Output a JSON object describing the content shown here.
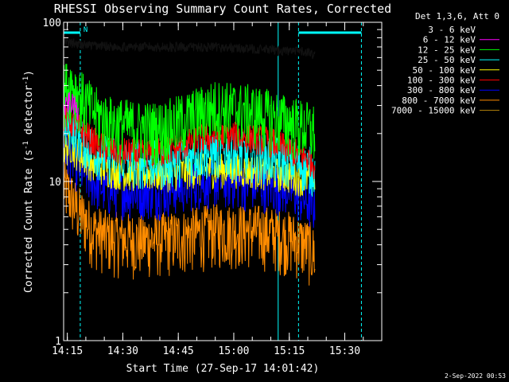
{
  "chart_data": {
    "type": "line",
    "title": "RHESSI Observing Summary Count Rates, Corrected",
    "xlabel": "Start Time (27-Sep-17 14:01:42)",
    "ylabel": "Corrected Count Rate",
    "ylabel_unit_a": "(s",
    "ylabel_unit_sup1": "-1",
    "ylabel_unit_b": " detector",
    "ylabel_unit_sup2": "-1",
    "ylabel_unit_c": ")",
    "y_scale": "log",
    "ylim": [
      1,
      100
    ],
    "xlim_minutes": [
      14.0,
      100.0
    ],
    "x_ticks": [
      {
        "label": "14:15",
        "minute": 15
      },
      {
        "label": "14:30",
        "minute": 30
      },
      {
        "label": "14:45",
        "minute": 45
      },
      {
        "label": "15:00",
        "minute": 60
      },
      {
        "label": "15:15",
        "minute": 75
      },
      {
        "label": "15:30",
        "minute": 90
      }
    ],
    "y_ticks": [
      {
        "label": "1",
        "value": 1
      },
      {
        "label": "10",
        "value": 10
      },
      {
        "label": "100",
        "value": 100
      }
    ],
    "legend_header": "Det 1,3,6, Att 0",
    "legend_position": "right",
    "flag_label": "N",
    "timestamp": "2-Sep-2022 00:53",
    "cyan_dashed_lines_minutes": [
      18.5,
      77.5,
      94.5
    ],
    "cyan_solid_lines_minutes": [
      14.0,
      72.0
    ],
    "series": [
      {
        "name": "3 - 6 keV",
        "color": "#000000",
        "start": 14.0,
        "end": 82.0,
        "values": [
          [
            14,
            75
          ],
          [
            20,
            72
          ],
          [
            30,
            70
          ],
          [
            40,
            70
          ],
          [
            50,
            70
          ],
          [
            60,
            69
          ],
          [
            70,
            67
          ],
          [
            75,
            66
          ],
          [
            80,
            65
          ],
          [
            82,
            62
          ]
        ]
      },
      {
        "name": "6 - 12 keV",
        "color": "#ff00ff",
        "start": 14.0,
        "end": 18.0,
        "values": [
          [
            14,
            28
          ],
          [
            15.5,
            32
          ],
          [
            17,
            30
          ],
          [
            18,
            27
          ]
        ]
      },
      {
        "name": "12 - 25 keV",
        "color": "#00ff00",
        "start": 14.0,
        "end": 82.0,
        "values": [
          [
            14,
            38
          ],
          [
            16,
            42
          ],
          [
            18,
            36
          ],
          [
            22,
            28
          ],
          [
            26,
            24
          ],
          [
            30,
            23
          ],
          [
            35,
            22
          ],
          [
            40,
            22
          ],
          [
            45,
            24
          ],
          [
            50,
            27
          ],
          [
            55,
            30
          ],
          [
            60,
            29
          ],
          [
            65,
            28
          ],
          [
            70,
            26
          ],
          [
            75,
            24
          ],
          [
            80,
            22
          ],
          [
            82,
            21
          ]
        ]
      },
      {
        "name": "25 - 50 keV",
        "color": "#00ffff",
        "start": 14.0,
        "end": 82.0,
        "values": [
          [
            14,
            22
          ],
          [
            16,
            24
          ],
          [
            18,
            20
          ],
          [
            22,
            16
          ],
          [
            26,
            14.5
          ],
          [
            30,
            14
          ],
          [
            35,
            13.5
          ],
          [
            40,
            13.5
          ],
          [
            45,
            14
          ],
          [
            50,
            15
          ],
          [
            55,
            15.5
          ],
          [
            60,
            15.5
          ],
          [
            65,
            15
          ],
          [
            70,
            14.5
          ],
          [
            75,
            14
          ],
          [
            80,
            12.5
          ],
          [
            82,
            12
          ]
        ]
      },
      {
        "name": "50 - 100 keV",
        "color": "#ffff00",
        "start": 14.0,
        "end": 82.0,
        "values": [
          [
            14,
            16
          ],
          [
            16,
            17
          ],
          [
            18,
            15
          ],
          [
            22,
            13
          ],
          [
            26,
            12
          ],
          [
            30,
            11.5
          ],
          [
            35,
            11.3
          ],
          [
            40,
            11.3
          ],
          [
            45,
            11.5
          ],
          [
            50,
            12
          ],
          [
            55,
            12
          ],
          [
            60,
            12
          ],
          [
            65,
            11.8
          ],
          [
            70,
            11.5
          ],
          [
            75,
            11
          ],
          [
            80,
            10.5
          ],
          [
            82,
            10
          ]
        ]
      },
      {
        "name": "100 - 300 keV",
        "color": "#ff0000",
        "start": 14.0,
        "end": 82.0,
        "values": [
          [
            14,
            26
          ],
          [
            16,
            24
          ],
          [
            18,
            22
          ],
          [
            22,
            18
          ],
          [
            26,
            16
          ],
          [
            30,
            15.5
          ],
          [
            35,
            15
          ],
          [
            40,
            15.5
          ],
          [
            45,
            16.5
          ],
          [
            50,
            18.5
          ],
          [
            55,
            19.5
          ],
          [
            60,
            19.5
          ],
          [
            65,
            19
          ],
          [
            70,
            18
          ],
          [
            75,
            16
          ],
          [
            80,
            14
          ],
          [
            82,
            13
          ]
        ]
      },
      {
        "name": "300 - 800 keV",
        "color": "#0000ff",
        "start": 14.0,
        "end": 82.0,
        "values": [
          [
            14,
            16
          ],
          [
            16,
            14.5
          ],
          [
            18,
            12.5
          ],
          [
            22,
            10
          ],
          [
            26,
            9
          ],
          [
            30,
            8.8
          ],
          [
            35,
            8.7
          ],
          [
            40,
            8.7
          ],
          [
            45,
            9.3
          ],
          [
            50,
            10
          ],
          [
            55,
            10.2
          ],
          [
            60,
            10
          ],
          [
            65,
            9.8
          ],
          [
            70,
            9.5
          ],
          [
            75,
            9
          ],
          [
            80,
            7.5
          ],
          [
            82,
            7
          ]
        ]
      },
      {
        "name": "800 - 7000 keV",
        "color": "#ff8c00",
        "start": 14.0,
        "end": 82.0,
        "values": [
          [
            14,
            9.5
          ],
          [
            16,
            8
          ],
          [
            18,
            6.5
          ],
          [
            22,
            5
          ],
          [
            26,
            4.5
          ],
          [
            30,
            4.4
          ],
          [
            35,
            4.3
          ],
          [
            40,
            4.4
          ],
          [
            45,
            4.5
          ],
          [
            50,
            4.8
          ],
          [
            55,
            5
          ],
          [
            60,
            5
          ],
          [
            65,
            5
          ],
          [
            70,
            4.8
          ],
          [
            75,
            4.5
          ],
          [
            80,
            4
          ],
          [
            82,
            3.5
          ]
        ]
      },
      {
        "name": "7000 - 15000 keV",
        "color": "#b8860b",
        "start": 14.0,
        "end": 82.0,
        "values": []
      }
    ]
  }
}
